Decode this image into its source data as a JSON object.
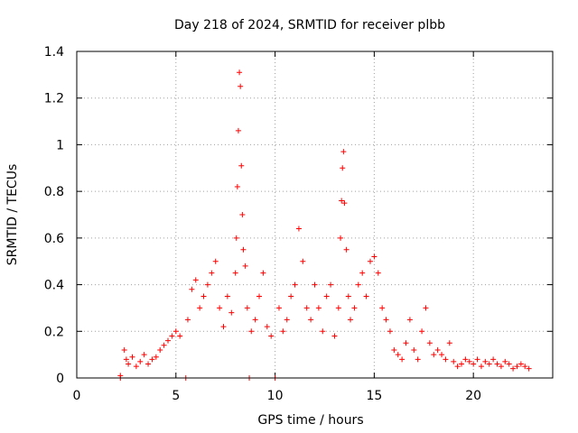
{
  "chart_data": {
    "type": "scatter",
    "title": "Day 218 of 2024, SRMTID for receiver plbb",
    "xlabel": "GPS time / hours",
    "ylabel": "SRMTID / TECUs",
    "xlim": [
      0,
      24
    ],
    "ylim": [
      0,
      1.4
    ],
    "xticks": [
      0,
      5,
      10,
      15,
      20
    ],
    "xtick_labels": [
      "0",
      "5",
      "10",
      "15",
      "20"
    ],
    "yticks": [
      0,
      0.2,
      0.4,
      0.6,
      0.8,
      1.0,
      1.2,
      1.4
    ],
    "ytick_labels": [
      "0",
      "0.2",
      "0.4",
      "0.6",
      "0.8",
      "1",
      "1.2",
      "1.4"
    ],
    "grid": true,
    "marker": "+",
    "marker_color": "#ff0000",
    "series": [
      {
        "name": "SRMTID",
        "x": [
          2.2,
          2.2,
          5.5,
          8.7,
          10.0,
          2.4,
          2.5,
          2.6,
          2.8,
          3.0,
          3.2,
          3.4,
          3.6,
          3.8,
          4.0,
          4.2,
          4.4,
          4.6,
          4.8,
          5.0,
          5.2,
          5.6,
          5.8,
          6.0,
          6.2,
          6.4,
          6.6,
          6.8,
          7.0,
          7.2,
          7.4,
          7.6,
          7.8,
          8.0,
          8.05,
          8.1,
          8.15,
          8.2,
          8.25,
          8.3,
          8.35,
          8.4,
          8.5,
          8.6,
          8.8,
          9.0,
          9.2,
          9.4,
          9.6,
          9.8,
          10.2,
          10.4,
          10.6,
          10.8,
          11.0,
          11.2,
          11.4,
          11.6,
          11.8,
          12.0,
          12.2,
          12.4,
          12.6,
          12.8,
          13.0,
          13.2,
          13.3,
          13.35,
          13.4,
          13.45,
          13.5,
          13.6,
          13.7,
          13.8,
          14.0,
          14.2,
          14.4,
          14.6,
          14.8,
          15.0,
          15.2,
          15.4,
          15.6,
          15.8,
          16.0,
          16.2,
          16.4,
          16.6,
          16.8,
          17.0,
          17.2,
          17.4,
          17.6,
          17.8,
          18.0,
          18.2,
          18.4,
          18.6,
          18.8,
          19.0,
          19.2,
          19.4,
          19.6,
          19.8,
          20.0,
          20.2,
          20.4,
          20.6,
          20.8,
          21.0,
          21.2,
          21.4,
          21.6,
          21.8,
          22.0,
          22.2,
          22.4,
          22.6,
          22.8
        ],
        "y": [
          0.0,
          0.01,
          0.0,
          0.0,
          0.0,
          0.12,
          0.08,
          0.06,
          0.09,
          0.05,
          0.07,
          0.1,
          0.06,
          0.08,
          0.09,
          0.12,
          0.14,
          0.16,
          0.18,
          0.2,
          0.18,
          0.25,
          0.38,
          0.42,
          0.3,
          0.35,
          0.4,
          0.45,
          0.5,
          0.3,
          0.22,
          0.35,
          0.28,
          0.45,
          0.6,
          0.82,
          1.06,
          1.31,
          1.25,
          0.91,
          0.7,
          0.55,
          0.48,
          0.3,
          0.2,
          0.25,
          0.35,
          0.45,
          0.22,
          0.18,
          0.3,
          0.2,
          0.25,
          0.35,
          0.4,
          0.64,
          0.5,
          0.3,
          0.25,
          0.4,
          0.3,
          0.2,
          0.35,
          0.4,
          0.18,
          0.3,
          0.6,
          0.76,
          0.9,
          0.97,
          0.75,
          0.55,
          0.35,
          0.25,
          0.3,
          0.4,
          0.45,
          0.35,
          0.5,
          0.52,
          0.45,
          0.3,
          0.25,
          0.2,
          0.12,
          0.1,
          0.08,
          0.15,
          0.25,
          0.12,
          0.08,
          0.2,
          0.3,
          0.15,
          0.1,
          0.12,
          0.1,
          0.08,
          0.15,
          0.07,
          0.05,
          0.06,
          0.08,
          0.07,
          0.06,
          0.08,
          0.05,
          0.07,
          0.06,
          0.08,
          0.06,
          0.05,
          0.07,
          0.06,
          0.04,
          0.05,
          0.06,
          0.05,
          0.04
        ]
      }
    ]
  }
}
